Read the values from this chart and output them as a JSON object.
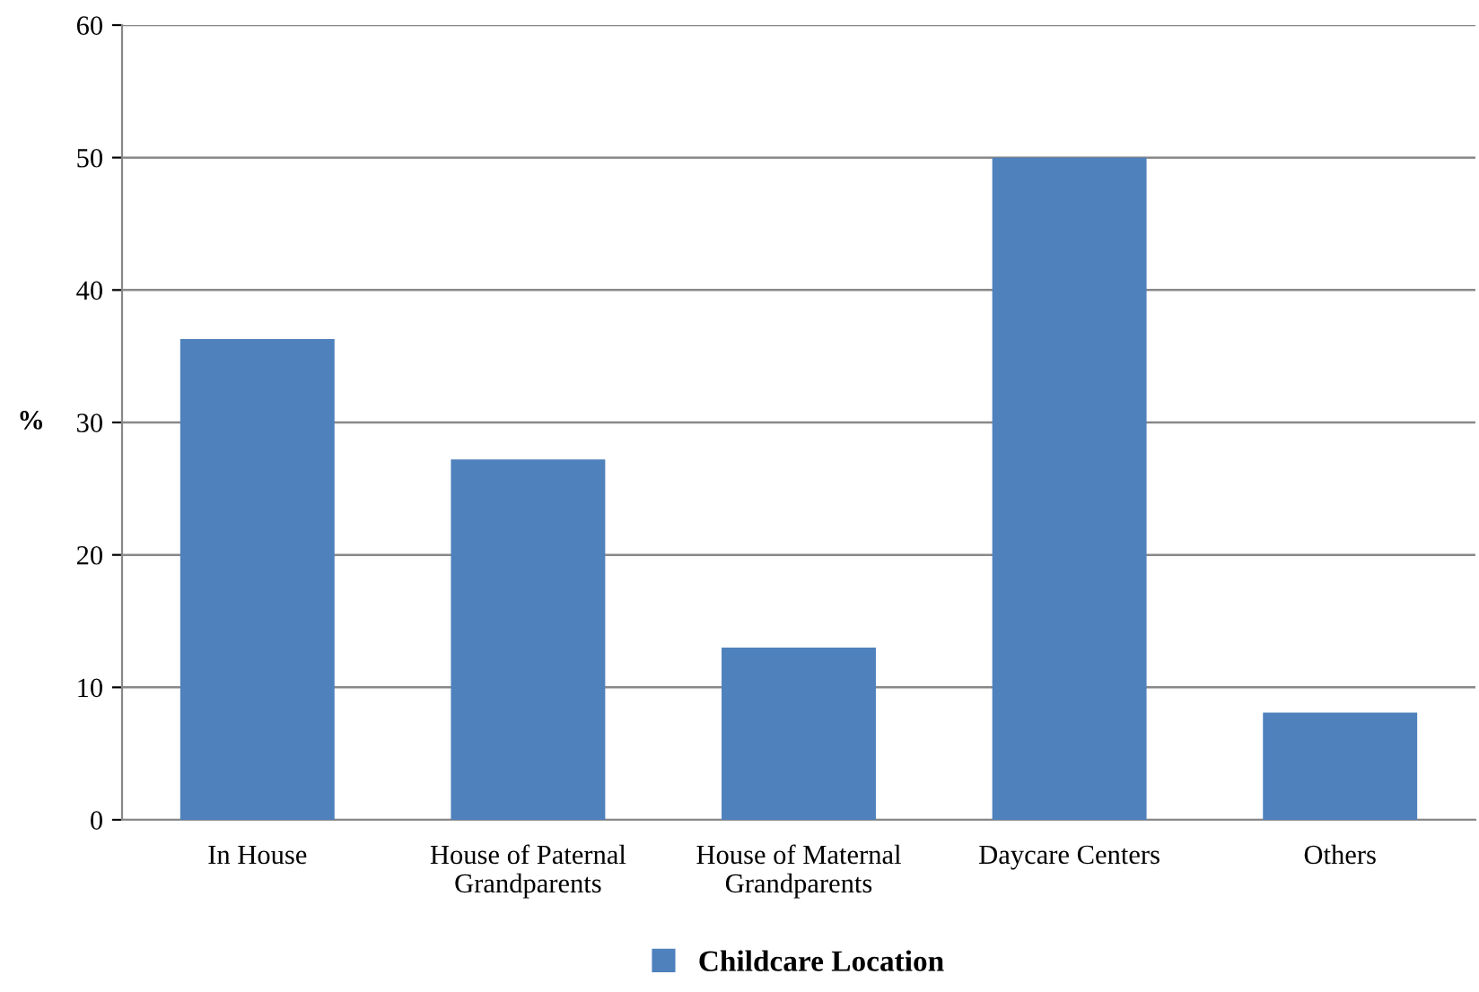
{
  "chart_data": {
    "type": "bar",
    "ylabel": "%",
    "categories": [
      "In House",
      "House of Paternal\nGrandparents",
      "House of Maternal\nGrandparents",
      "Daycare Centers",
      "Others"
    ],
    "series": [
      {
        "name": "Childcare Location",
        "color": "#4f81bd",
        "values": [
          36.3,
          27.2,
          13.0,
          50.0,
          8.1
        ]
      }
    ],
    "ylim": [
      0,
      60
    ],
    "yticks": [
      0,
      10,
      20,
      30,
      40,
      50,
      60
    ],
    "grid": "y",
    "legend": "bottom"
  }
}
